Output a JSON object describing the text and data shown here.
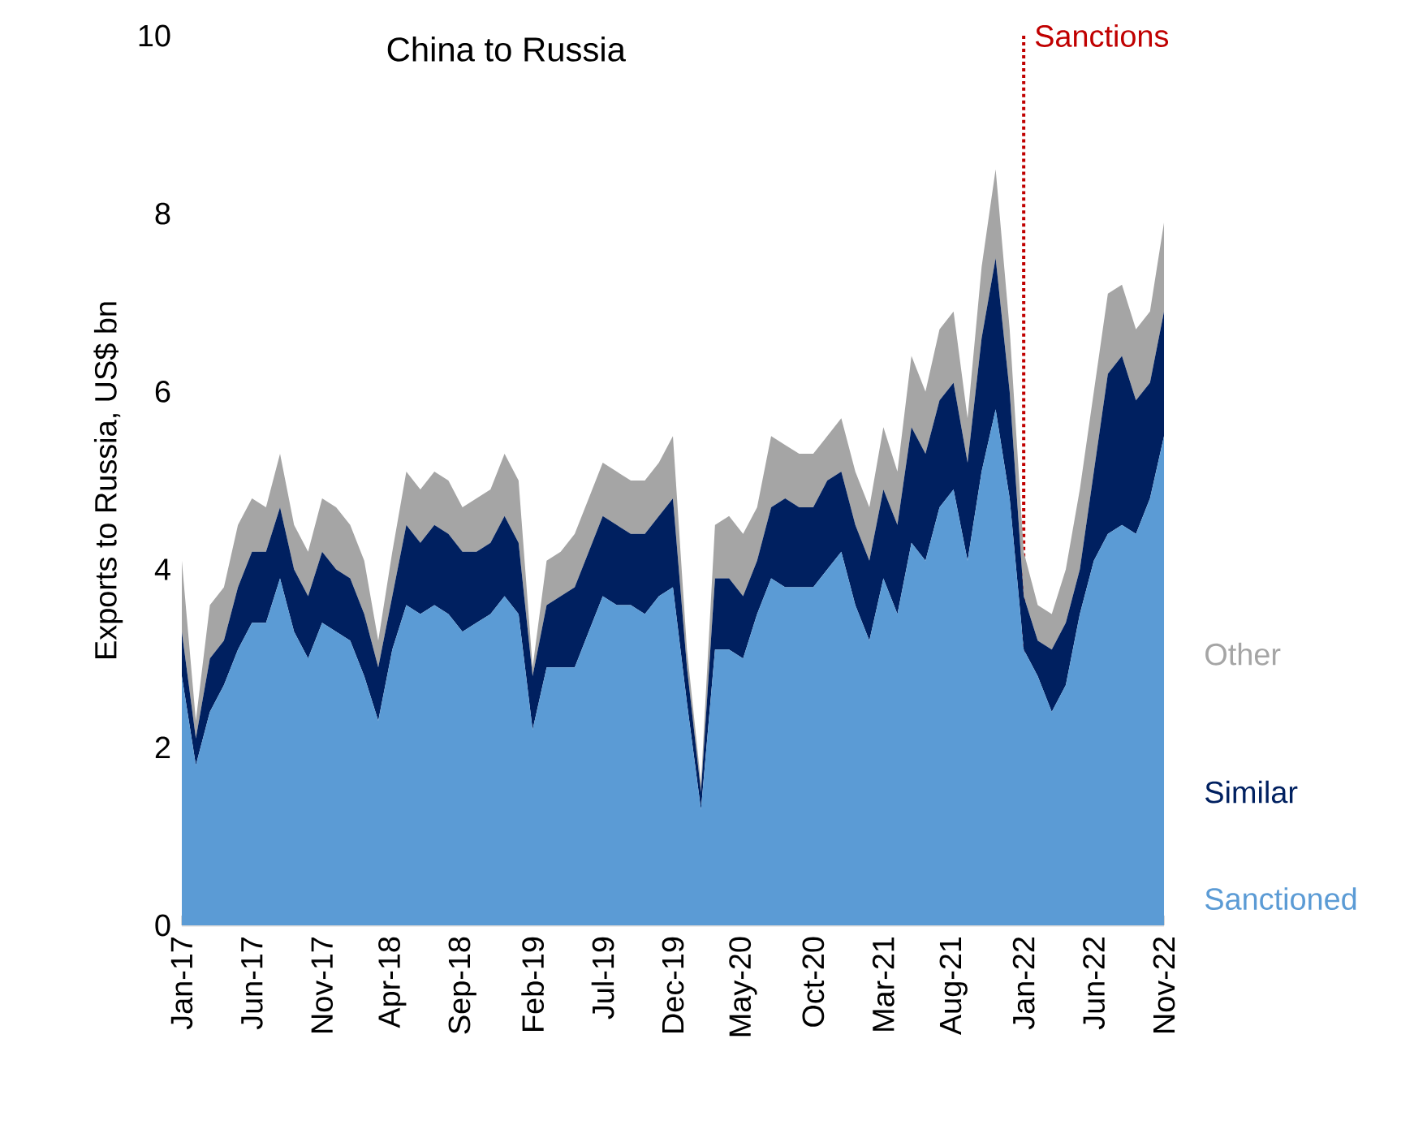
{
  "chart_data": {
    "type": "area",
    "title": "China to Russia",
    "ylabel": "Exports to Russia, US$ bn",
    "categories": [
      "Jan-17",
      null,
      null,
      null,
      null,
      "Jun-17",
      null,
      null,
      null,
      null,
      "Nov-17",
      null,
      null,
      null,
      null,
      "Apr-18",
      null,
      null,
      null,
      null,
      "Sep-18",
      null,
      null,
      null,
      null,
      "Feb-19",
      null,
      null,
      null,
      null,
      "Jul-19",
      null,
      null,
      null,
      null,
      "Dec-19",
      null,
      null,
      null,
      null,
      "May-20",
      null,
      null,
      null,
      null,
      "Oct-20",
      null,
      null,
      null,
      null,
      "Mar-21",
      null,
      null,
      null,
      null,
      "Aug-21",
      null,
      null,
      null,
      null,
      "Jan-22",
      null,
      null,
      null,
      null,
      "Jun-22",
      null,
      null,
      null,
      null,
      "Nov-22"
    ],
    "stacked": true,
    "series": [
      {
        "name": "Sanctioned",
        "color": "#5b9bd5",
        "values": [
          2.8,
          1.8,
          2.4,
          2.7,
          3.1,
          3.4,
          3.4,
          3.9,
          3.3,
          3.0,
          3.4,
          3.3,
          3.2,
          2.8,
          2.3,
          3.1,
          3.6,
          3.5,
          3.6,
          3.5,
          3.3,
          3.4,
          3.5,
          3.7,
          3.5,
          2.2,
          2.9,
          2.9,
          2.9,
          3.3,
          3.7,
          3.6,
          3.6,
          3.5,
          3.7,
          3.8,
          2.5,
          1.3,
          3.1,
          3.1,
          3.0,
          3.5,
          3.9,
          3.8,
          3.8,
          3.8,
          4.0,
          4.2,
          3.6,
          3.2,
          3.9,
          3.5,
          4.3,
          4.1,
          4.7,
          4.9,
          4.1,
          5.1,
          5.8,
          4.8,
          3.1,
          2.8,
          2.4,
          2.7,
          3.5,
          4.1,
          4.4,
          4.5,
          4.4,
          4.8,
          5.5
        ]
      },
      {
        "name": "Similar",
        "color": "#002060",
        "values": [
          0.5,
          0.3,
          0.6,
          0.5,
          0.7,
          0.8,
          0.8,
          0.8,
          0.7,
          0.7,
          0.8,
          0.7,
          0.7,
          0.7,
          0.6,
          0.6,
          0.9,
          0.8,
          0.9,
          0.9,
          0.9,
          0.8,
          0.8,
          0.9,
          0.8,
          0.6,
          0.7,
          0.8,
          0.9,
          0.9,
          0.9,
          0.9,
          0.8,
          0.9,
          0.9,
          1.0,
          0.4,
          0.2,
          0.8,
          0.8,
          0.7,
          0.6,
          0.8,
          1.0,
          0.9,
          0.9,
          1.0,
          0.9,
          0.9,
          0.9,
          1.0,
          1.0,
          1.3,
          1.2,
          1.2,
          1.2,
          1.1,
          1.5,
          1.7,
          1.2,
          0.6,
          0.4,
          0.7,
          0.7,
          0.5,
          1.0,
          1.8,
          1.9,
          1.5,
          1.3,
          1.4
        ]
      },
      {
        "name": "Other",
        "color": "#a5a5a5",
        "values": [
          0.8,
          0.2,
          0.6,
          0.6,
          0.7,
          0.6,
          0.5,
          0.6,
          0.5,
          0.5,
          0.6,
          0.7,
          0.6,
          0.6,
          0.3,
          0.5,
          0.6,
          0.6,
          0.6,
          0.6,
          0.5,
          0.6,
          0.6,
          0.7,
          0.7,
          0.1,
          0.5,
          0.5,
          0.6,
          0.6,
          0.6,
          0.6,
          0.6,
          0.6,
          0.6,
          0.7,
          0.2,
          0.1,
          0.6,
          0.7,
          0.7,
          0.6,
          0.8,
          0.6,
          0.6,
          0.6,
          0.5,
          0.6,
          0.6,
          0.6,
          0.7,
          0.6,
          0.8,
          0.7,
          0.8,
          0.8,
          0.5,
          0.8,
          1.0,
          0.7,
          0.5,
          0.4,
          0.4,
          0.6,
          0.9,
          0.9,
          0.9,
          0.8,
          0.8,
          0.8,
          1.0
        ]
      }
    ],
    "ylim": [
      0,
      10
    ],
    "yticks": [
      0,
      2,
      4,
      6,
      8,
      10
    ],
    "ref_lines": [
      {
        "axis": "x",
        "value": "Jan-22",
        "label": "Sanctions",
        "color": "#c00000",
        "line_style": "dotted"
      }
    ],
    "legend": "right"
  }
}
